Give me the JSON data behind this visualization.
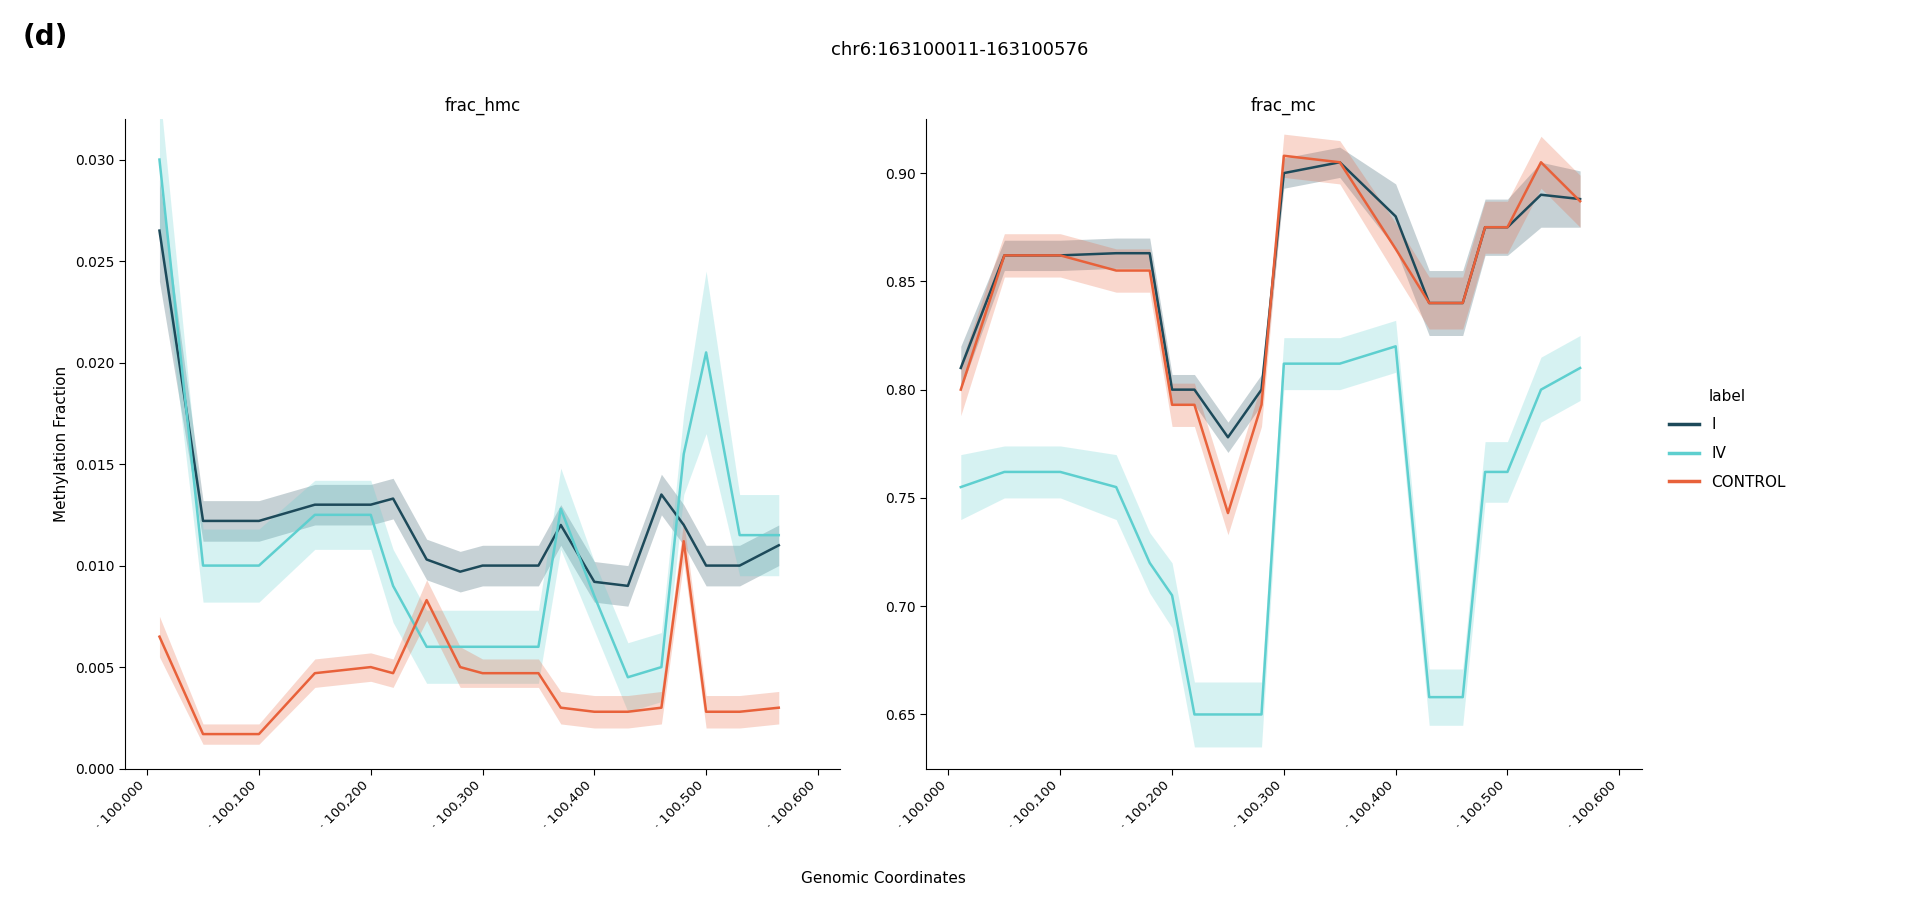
{
  "title": "chr6:163100011-163100576",
  "panel_label": "(d)",
  "xlabel": "Genomic Coordinates",
  "ylabel": "Methylation Fraction",
  "left_title": "frac_hmc",
  "right_title": "frac_mc",
  "legend_title": "label",
  "legend_labels": [
    "I",
    "IV",
    "CONTROL"
  ],
  "colors": {
    "I": "#1d4a5a",
    "IV": "#5ecfcf",
    "CONTROL": "#e8613a"
  },
  "hmc_x": [
    11,
    50,
    100,
    150,
    200,
    220,
    250,
    280,
    300,
    350,
    370,
    400,
    430,
    460,
    480,
    500,
    530,
    565
  ],
  "hmc_I_y": [
    0.0265,
    0.0122,
    0.0122,
    0.013,
    0.013,
    0.0133,
    0.0103,
    0.0097,
    0.01,
    0.01,
    0.012,
    0.0092,
    0.009,
    0.0135,
    0.012,
    0.01,
    0.01,
    0.011
  ],
  "hmc_I_lo": [
    0.024,
    0.0112,
    0.0112,
    0.012,
    0.012,
    0.0123,
    0.0093,
    0.0087,
    0.009,
    0.009,
    0.011,
    0.0082,
    0.008,
    0.0125,
    0.011,
    0.009,
    0.009,
    0.01
  ],
  "hmc_I_hi": [
    0.029,
    0.0132,
    0.0132,
    0.014,
    0.014,
    0.0143,
    0.0113,
    0.0107,
    0.011,
    0.011,
    0.013,
    0.0102,
    0.01,
    0.0145,
    0.013,
    0.011,
    0.011,
    0.012
  ],
  "hmc_IV_y": [
    0.03,
    0.01,
    0.01,
    0.0125,
    0.0125,
    0.009,
    0.006,
    0.006,
    0.006,
    0.006,
    0.0128,
    0.0085,
    0.0045,
    0.005,
    0.0155,
    0.0205,
    0.0115,
    0.0115
  ],
  "hmc_IV_lo": [
    0.0265,
    0.0082,
    0.0082,
    0.0108,
    0.0108,
    0.0072,
    0.0042,
    0.0042,
    0.0042,
    0.0042,
    0.0108,
    0.0068,
    0.0028,
    0.0033,
    0.0135,
    0.0165,
    0.0095,
    0.0095
  ],
  "hmc_IV_hi": [
    0.0335,
    0.0118,
    0.0118,
    0.0142,
    0.0142,
    0.0108,
    0.0078,
    0.0078,
    0.0078,
    0.0078,
    0.0148,
    0.0102,
    0.0062,
    0.0067,
    0.0175,
    0.0245,
    0.0135,
    0.0135
  ],
  "hmc_C_y": [
    0.0065,
    0.0017,
    0.0017,
    0.0047,
    0.005,
    0.0047,
    0.0083,
    0.005,
    0.0047,
    0.0047,
    0.003,
    0.0028,
    0.0028,
    0.003,
    0.0112,
    0.0028,
    0.0028,
    0.003
  ],
  "hmc_C_lo": [
    0.0055,
    0.0012,
    0.0012,
    0.004,
    0.0043,
    0.004,
    0.0073,
    0.004,
    0.004,
    0.004,
    0.0022,
    0.002,
    0.002,
    0.0022,
    0.0102,
    0.002,
    0.002,
    0.0022
  ],
  "hmc_C_hi": [
    0.0075,
    0.0022,
    0.0022,
    0.0054,
    0.0057,
    0.0054,
    0.0093,
    0.006,
    0.0054,
    0.0054,
    0.0038,
    0.0036,
    0.0036,
    0.0038,
    0.0122,
    0.0036,
    0.0036,
    0.0038
  ],
  "mc_x": [
    11,
    50,
    100,
    150,
    180,
    200,
    220,
    250,
    280,
    300,
    350,
    400,
    430,
    460,
    480,
    500,
    530,
    565
  ],
  "mc_I_y": [
    0.81,
    0.862,
    0.862,
    0.863,
    0.863,
    0.8,
    0.8,
    0.778,
    0.8,
    0.9,
    0.905,
    0.88,
    0.84,
    0.84,
    0.875,
    0.875,
    0.89,
    0.888
  ],
  "mc_I_lo": [
    0.8,
    0.855,
    0.855,
    0.856,
    0.856,
    0.793,
    0.793,
    0.771,
    0.793,
    0.893,
    0.898,
    0.865,
    0.825,
    0.825,
    0.862,
    0.862,
    0.875,
    0.875
  ],
  "mc_I_hi": [
    0.82,
    0.869,
    0.869,
    0.87,
    0.87,
    0.807,
    0.807,
    0.785,
    0.807,
    0.907,
    0.912,
    0.895,
    0.855,
    0.855,
    0.888,
    0.888,
    0.905,
    0.901
  ],
  "mc_IV_y": [
    0.755,
    0.762,
    0.762,
    0.755,
    0.72,
    0.705,
    0.65,
    0.65,
    0.65,
    0.812,
    0.812,
    0.82,
    0.658,
    0.658,
    0.762,
    0.762,
    0.8,
    0.81
  ],
  "mc_IV_lo": [
    0.74,
    0.75,
    0.75,
    0.74,
    0.706,
    0.69,
    0.635,
    0.635,
    0.635,
    0.8,
    0.8,
    0.808,
    0.645,
    0.645,
    0.748,
    0.748,
    0.785,
    0.795
  ],
  "mc_IV_hi": [
    0.77,
    0.774,
    0.774,
    0.77,
    0.734,
    0.72,
    0.665,
    0.665,
    0.665,
    0.824,
    0.824,
    0.832,
    0.671,
    0.671,
    0.776,
    0.776,
    0.815,
    0.825
  ],
  "mc_C_y": [
    0.8,
    0.862,
    0.862,
    0.855,
    0.855,
    0.793,
    0.793,
    0.743,
    0.793,
    0.908,
    0.905,
    0.865,
    0.84,
    0.84,
    0.875,
    0.875,
    0.905,
    0.887
  ],
  "mc_C_lo": [
    0.788,
    0.852,
    0.852,
    0.845,
    0.845,
    0.783,
    0.783,
    0.733,
    0.783,
    0.898,
    0.895,
    0.853,
    0.828,
    0.828,
    0.863,
    0.863,
    0.893,
    0.875
  ],
  "mc_C_hi": [
    0.812,
    0.872,
    0.872,
    0.865,
    0.865,
    0.803,
    0.803,
    0.753,
    0.803,
    0.918,
    0.915,
    0.877,
    0.852,
    0.852,
    0.887,
    0.887,
    0.917,
    0.899
  ],
  "hmc_ylim": [
    0.0,
    0.032
  ],
  "mc_ylim": [
    0.625,
    0.925
  ],
  "hmc_yticks": [
    0.0,
    0.005,
    0.01,
    0.015,
    0.02,
    0.025,
    0.03
  ],
  "mc_yticks": [
    0.65,
    0.7,
    0.75,
    0.8,
    0.85,
    0.9
  ],
  "xlim": [
    -20,
    620
  ],
  "xtick_locs": [
    0,
    100,
    200,
    300,
    400,
    500,
    600
  ],
  "xtick_labels": [
    "· 100,000",
    "· 100,100",
    "· 100,200",
    "· 100,300",
    "· 100,400",
    "· 100,500",
    "· 100,600"
  ],
  "background_color": "#ffffff",
  "alpha_fill": 0.25,
  "linewidth": 1.8
}
